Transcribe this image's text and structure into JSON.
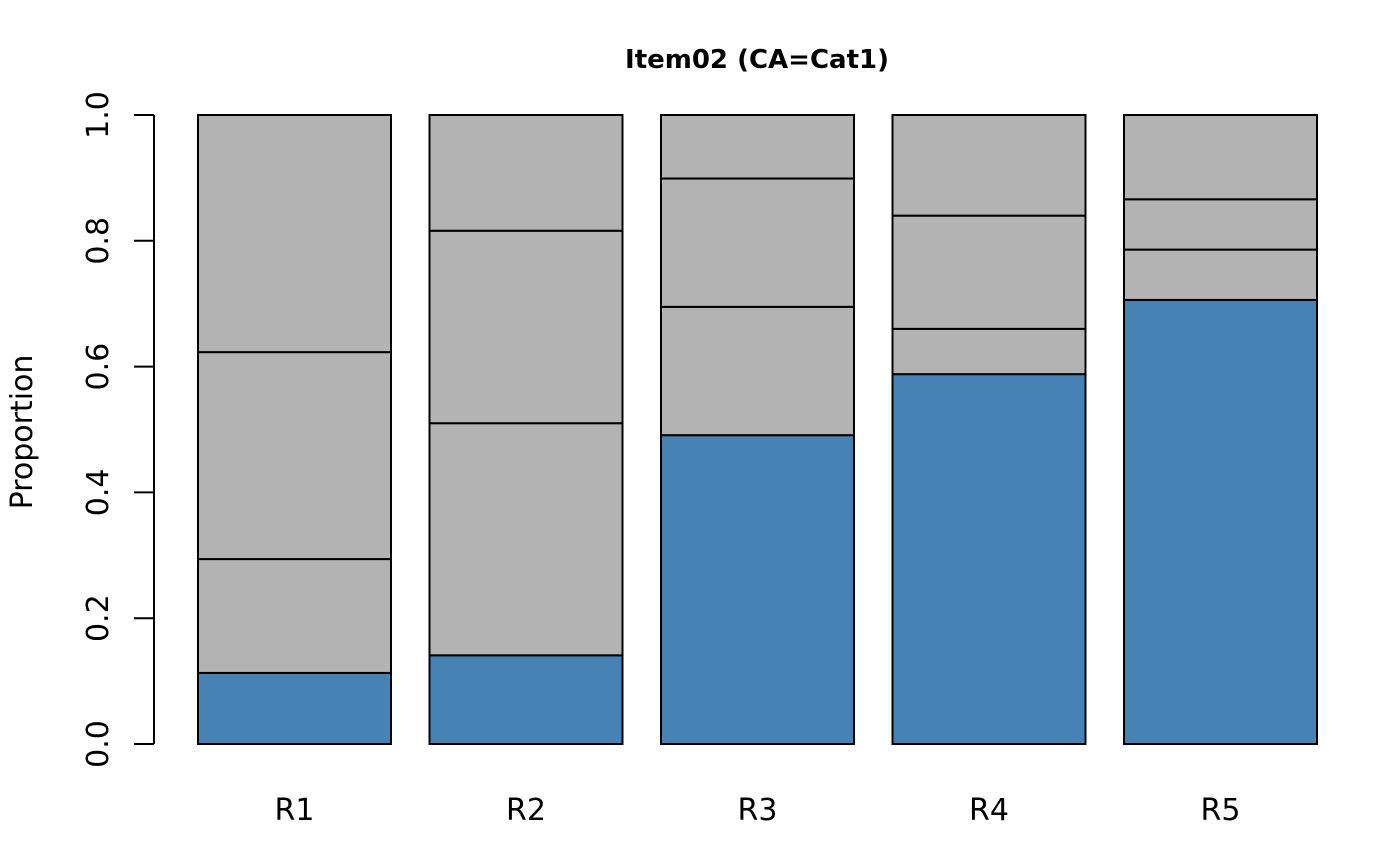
{
  "chart_data": {
    "type": "bar",
    "stacked": true,
    "title": "Item02 (CA=Cat1)",
    "xlabel": "",
    "ylabel": "Proportion",
    "ylim": [
      0,
      1
    ],
    "yticks": [
      "0.0",
      "0.2",
      "0.4",
      "0.6",
      "0.8",
      "1.0"
    ],
    "categories": [
      "R1",
      "R2",
      "R3",
      "R4",
      "R5"
    ],
    "boundaries": [
      [
        0.113,
        0.294,
        0.623,
        1.0
      ],
      [
        0.141,
        0.51,
        0.816,
        1.0
      ],
      [
        0.491,
        0.695,
        0.899,
        1.0
      ],
      [
        0.588,
        0.66,
        0.84,
        1.0
      ],
      [
        0.706,
        0.786,
        0.866,
        1.0
      ]
    ],
    "colors": {
      "correct": "#4682B4",
      "other": "#B3B3B3"
    },
    "grid": false
  }
}
